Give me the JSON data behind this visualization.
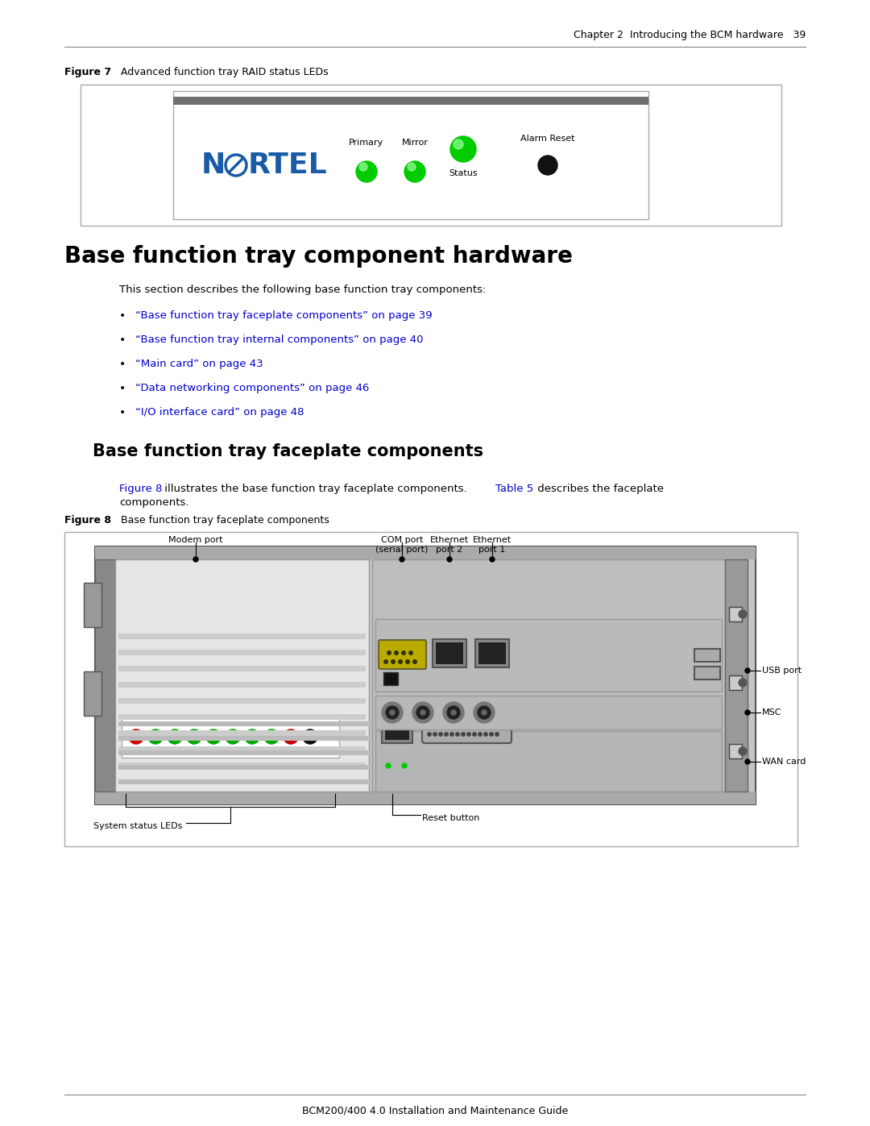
{
  "page_title": "Chapter 2  Introducing the BCM hardware   39",
  "fig7_label": "Figure 7",
  "fig7_title": "Advanced function tray RAID status LEDs",
  "section_title": "Base function tray component hardware",
  "section_body": "This section describes the following base function tray components:",
  "bullet_links": [
    "“Base function tray faceplate components” on page 39",
    "“Base function tray internal components” on page 40",
    "“Main card” on page 43",
    "“Data networking components” on page 46",
    "“I/O interface card” on page 48"
  ],
  "subsection_title": "Base function tray faceplate components",
  "fig8_label": "Figure 8",
  "fig8_title": "Base function tray faceplate components",
  "footer_line": "BCM200/400 4.0 Installation and Maintenance Guide",
  "link_color": "#0000CD",
  "bg_color": "#FFFFFF",
  "nortel_blue": "#1A5BA6"
}
